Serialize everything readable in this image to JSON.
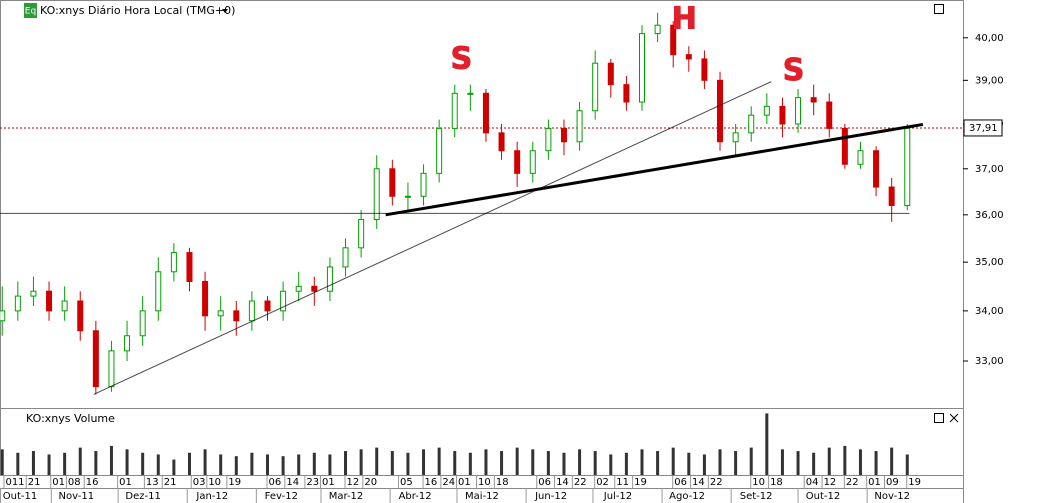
{
  "chart_data": [
    {
      "type": "candlestick",
      "title": "KO:xnys Diário Hora Local (TMG+0)",
      "badge": "Eq",
      "log_scale": true,
      "x": [
        "2011-10-10",
        "2011-10-17",
        "2011-10-24",
        "2011-10-31",
        "2011-11-07",
        "2011-11-14",
        "2011-11-21",
        "2011-11-28",
        "2011-12-05",
        "2011-12-12",
        "2011-12-19",
        "2011-12-26",
        "2012-01-02",
        "2012-01-09",
        "2012-01-16",
        "2012-01-23",
        "2012-01-30",
        "2012-02-06",
        "2012-02-13",
        "2012-02-20",
        "2012-02-27",
        "2012-03-05",
        "2012-03-12",
        "2012-03-19",
        "2012-03-26",
        "2012-04-02",
        "2012-04-09",
        "2012-04-16",
        "2012-04-23",
        "2012-04-30",
        "2012-05-07",
        "2012-05-14",
        "2012-05-21",
        "2012-05-28",
        "2012-06-04",
        "2012-06-11",
        "2012-06-18",
        "2012-06-25",
        "2012-07-02",
        "2012-07-09",
        "2012-07-16",
        "2012-07-23",
        "2012-07-30",
        "2012-08-06",
        "2012-08-13",
        "2012-08-20",
        "2012-08-27",
        "2012-09-03",
        "2012-09-10",
        "2012-09-17",
        "2012-09-24",
        "2012-10-01",
        "2012-10-08",
        "2012-10-15",
        "2012-10-22",
        "2012-10-29",
        "2012-11-05",
        "2012-11-12",
        "2012-11-19"
      ],
      "open": [
        33.8,
        34.0,
        34.3,
        34.4,
        34.0,
        34.2,
        33.6,
        32.5,
        33.2,
        33.5,
        34.0,
        34.8,
        35.2,
        34.6,
        33.9,
        34.0,
        33.8,
        34.2,
        34.0,
        34.4,
        34.5,
        34.4,
        34.9,
        35.3,
        35.9,
        37.0,
        36.4,
        36.4,
        36.9,
        37.9,
        38.7,
        38.7,
        37.8,
        37.4,
        36.9,
        37.4,
        37.9,
        37.6,
        38.3,
        39.4,
        38.9,
        38.5,
        40.1,
        40.3,
        39.6,
        39.5,
        39.0,
        37.6,
        37.8,
        38.2,
        38.4,
        38.0,
        38.6,
        38.5,
        37.9,
        37.1,
        37.4,
        36.6,
        36.2
      ],
      "high": [
        34.5,
        34.6,
        34.7,
        34.6,
        34.5,
        34.4,
        33.8,
        33.4,
        33.8,
        34.3,
        35.1,
        35.4,
        35.3,
        34.8,
        34.3,
        34.2,
        34.4,
        34.3,
        34.6,
        34.8,
        34.7,
        35.1,
        35.5,
        36.1,
        37.3,
        37.2,
        36.7,
        37.1,
        38.1,
        38.9,
        38.9,
        38.8,
        38.0,
        37.6,
        37.6,
        38.1,
        38.1,
        38.5,
        39.7,
        39.5,
        39.1,
        40.3,
        40.6,
        40.4,
        39.8,
        39.7,
        39.2,
        38.0,
        38.4,
        38.7,
        38.6,
        38.8,
        38.9,
        38.7,
        38.0,
        37.6,
        37.5,
        36.8,
        38.0
      ],
      "low": [
        33.5,
        33.8,
        34.1,
        33.8,
        33.8,
        33.4,
        32.35,
        32.4,
        33.0,
        33.3,
        33.8,
        34.6,
        34.4,
        33.6,
        33.6,
        33.5,
        33.6,
        33.8,
        33.8,
        34.2,
        34.1,
        34.2,
        34.7,
        35.1,
        35.7,
        36.2,
        36.1,
        36.2,
        36.7,
        37.7,
        38.3,
        37.6,
        37.2,
        36.6,
        36.7,
        37.2,
        37.3,
        37.4,
        38.1,
        38.6,
        38.3,
        38.3,
        39.9,
        39.3,
        39.2,
        38.8,
        37.4,
        37.3,
        37.6,
        38.0,
        37.7,
        37.8,
        38.2,
        37.7,
        37.0,
        37.0,
        36.4,
        35.85,
        36.1
      ],
      "close": [
        34.0,
        34.3,
        34.4,
        34.0,
        34.2,
        33.6,
        32.5,
        33.2,
        33.5,
        34.0,
        34.8,
        35.2,
        34.6,
        33.9,
        34.0,
        33.8,
        34.2,
        34.0,
        34.4,
        34.5,
        34.4,
        34.9,
        35.3,
        35.9,
        37.0,
        36.4,
        36.4,
        36.9,
        37.9,
        38.7,
        38.7,
        37.8,
        37.4,
        36.9,
        37.4,
        37.9,
        37.6,
        38.3,
        39.4,
        38.9,
        38.5,
        40.1,
        40.3,
        39.6,
        39.5,
        39.0,
        37.6,
        37.8,
        38.2,
        38.4,
        38.0,
        38.6,
        38.5,
        37.9,
        37.1,
        37.4,
        36.6,
        36.2,
        37.9
      ],
      "up_color": "#00a000",
      "down_color": "#d00000",
      "xlim": [
        "2011-10-09",
        "2012-12-14"
      ],
      "ylim": [
        32.09,
        40.91
      ],
      "yticks": [
        {
          "value": 33,
          "label": "33,00"
        },
        {
          "value": 34,
          "label": "34,00"
        },
        {
          "value": 35,
          "label": "35,00"
        },
        {
          "value": 36,
          "label": "36,00"
        },
        {
          "value": 37,
          "label": "37,00"
        },
        {
          "value": 38,
          "label": "38,00"
        },
        {
          "value": 39,
          "label": "39,00"
        },
        {
          "value": 40,
          "label": "40,00"
        }
      ],
      "day_ticks": [
        {
          "value": "2011-10-11",
          "label": "011"
        },
        {
          "value": "2011-10-21",
          "label": "21"
        },
        {
          "value": "2011-11-01",
          "label": "01"
        },
        {
          "value": "2011-11-08",
          "label": "08"
        },
        {
          "value": "2011-11-16",
          "label": "16"
        },
        {
          "value": "2011-12-01",
          "label": "01"
        },
        {
          "value": "2011-12-13",
          "label": "13"
        },
        {
          "value": "2011-12-21",
          "label": "21"
        },
        {
          "value": "2012-01-03",
          "label": "03"
        },
        {
          "value": "2012-01-10",
          "label": "10"
        },
        {
          "value": "2012-01-19",
          "label": "19"
        },
        {
          "value": "2012-02-06",
          "label": "06"
        },
        {
          "value": "2012-02-14",
          "label": "14"
        },
        {
          "value": "2012-02-23",
          "label": "23"
        },
        {
          "value": "2012-03-01",
          "label": "01"
        },
        {
          "value": "2012-03-12",
          "label": "12"
        },
        {
          "value": "2012-03-20",
          "label": "20"
        },
        {
          "value": "2012-04-05",
          "label": "05"
        },
        {
          "value": "2012-04-16",
          "label": "16"
        },
        {
          "value": "2012-04-24",
          "label": "24"
        },
        {
          "value": "2012-05-01",
          "label": "01"
        },
        {
          "value": "2012-05-10",
          "label": "10"
        },
        {
          "value": "2012-05-18",
          "label": "18"
        },
        {
          "value": "2012-06-06",
          "label": "06"
        },
        {
          "value": "2012-06-14",
          "label": "14"
        },
        {
          "value": "2012-06-22",
          "label": "22"
        },
        {
          "value": "2012-07-02",
          "label": "02"
        },
        {
          "value": "2012-07-11",
          "label": "11"
        },
        {
          "value": "2012-07-19",
          "label": "19"
        },
        {
          "value": "2012-08-06",
          "label": "06"
        },
        {
          "value": "2012-08-14",
          "label": "14"
        },
        {
          "value": "2012-08-22",
          "label": "22"
        },
        {
          "value": "2012-09-10",
          "label": "10"
        },
        {
          "value": "2012-09-18",
          "label": "18"
        },
        {
          "value": "2012-10-04",
          "label": "04"
        },
        {
          "value": "2012-10-12",
          "label": "12"
        },
        {
          "value": "2012-10-22",
          "label": "22"
        },
        {
          "value": "2012-11-01",
          "label": "01"
        },
        {
          "value": "2012-11-09",
          "label": "09"
        },
        {
          "value": "2012-11-19",
          "label": "19"
        }
      ],
      "month_ticks": [
        {
          "value": "2011-10",
          "label": "Out-11"
        },
        {
          "value": "2011-11",
          "label": "Nov-11"
        },
        {
          "value": "2011-12",
          "label": "Dez-11"
        },
        {
          "value": "2012-01",
          "label": "Jan-12"
        },
        {
          "value": "2012-02",
          "label": "Fev-12"
        },
        {
          "value": "2012-03",
          "label": "Mar-12"
        },
        {
          "value": "2012-04",
          "label": "Abr-12"
        },
        {
          "value": "2012-05",
          "label": "Mai-12"
        },
        {
          "value": "2012-06",
          "label": "Jun-12"
        },
        {
          "value": "2012-07",
          "label": "Jul-12"
        },
        {
          "value": "2012-08",
          "label": "Ago-12"
        },
        {
          "value": "2012-09",
          "label": "Set-12"
        },
        {
          "value": "2012-10",
          "label": "Out-12"
        },
        {
          "value": "2012-11",
          "label": "Nov-12"
        }
      ],
      "last_price": {
        "value": 37.91,
        "label": "37,91",
        "color": "#c00000"
      },
      "lines": [
        {
          "from": [
            "2011-11-20",
            32.35
          ],
          "to": [
            "2012-09-19",
            38.97
          ],
          "style": "thin"
        },
        {
          "from": [
            "2012-03-30",
            36.0
          ],
          "to": [
            "2012-11-26",
            37.99
          ],
          "style": "thick"
        },
        {
          "from": [
            "2011-10-09",
            36.03
          ],
          "to": [
            "2012-11-20",
            36.03
          ],
          "style": "thin"
        }
      ],
      "annotations": [
        {
          "text": "S",
          "at": [
            "2012-05-03",
            39.48
          ]
        },
        {
          "text": "H",
          "at": [
            "2012-08-11",
            40.43
          ]
        },
        {
          "text": "S",
          "at": [
            "2012-09-29",
            39.2
          ]
        }
      ],
      "annotation_color": "#e0202a"
    },
    {
      "type": "bar",
      "title": "KO:xnys Volume",
      "color": "#333333",
      "x": [
        "2011-10-10",
        "2011-10-17",
        "2011-10-24",
        "2011-10-31",
        "2011-11-07",
        "2011-11-14",
        "2011-11-21",
        "2011-11-28",
        "2011-12-05",
        "2011-12-12",
        "2011-12-19",
        "2011-12-26",
        "2012-01-02",
        "2012-01-09",
        "2012-01-16",
        "2012-01-23",
        "2012-01-30",
        "2012-02-06",
        "2012-02-13",
        "2012-02-20",
        "2012-02-27",
        "2012-03-05",
        "2012-03-12",
        "2012-03-19",
        "2012-03-26",
        "2012-04-02",
        "2012-04-09",
        "2012-04-16",
        "2012-04-23",
        "2012-04-30",
        "2012-05-07",
        "2012-05-14",
        "2012-05-21",
        "2012-05-28",
        "2012-06-04",
        "2012-06-11",
        "2012-06-18",
        "2012-06-25",
        "2012-07-02",
        "2012-07-09",
        "2012-07-16",
        "2012-07-23",
        "2012-07-30",
        "2012-08-06",
        "2012-08-13",
        "2012-08-20",
        "2012-08-27",
        "2012-09-03",
        "2012-09-10",
        "2012-09-17",
        "2012-09-24",
        "2012-10-01",
        "2012-10-08",
        "2012-10-15",
        "2012-10-22",
        "2012-10-29",
        "2012-11-05",
        "2012-11-12",
        "2012-11-19"
      ],
      "values": [
        15,
        13,
        14,
        12,
        13,
        16,
        14,
        17,
        15,
        13,
        12,
        9,
        13,
        15,
        12,
        11,
        13,
        12,
        11,
        12,
        13,
        12,
        14,
        15,
        16,
        14,
        13,
        15,
        16,
        14,
        13,
        15,
        14,
        16,
        15,
        14,
        13,
        15,
        14,
        12,
        13,
        15,
        14,
        16,
        13,
        12,
        15,
        14,
        16,
        36,
        15,
        14,
        13,
        16,
        17,
        15,
        14,
        16,
        12
      ],
      "ylim": [
        0,
        38
      ]
    }
  ]
}
